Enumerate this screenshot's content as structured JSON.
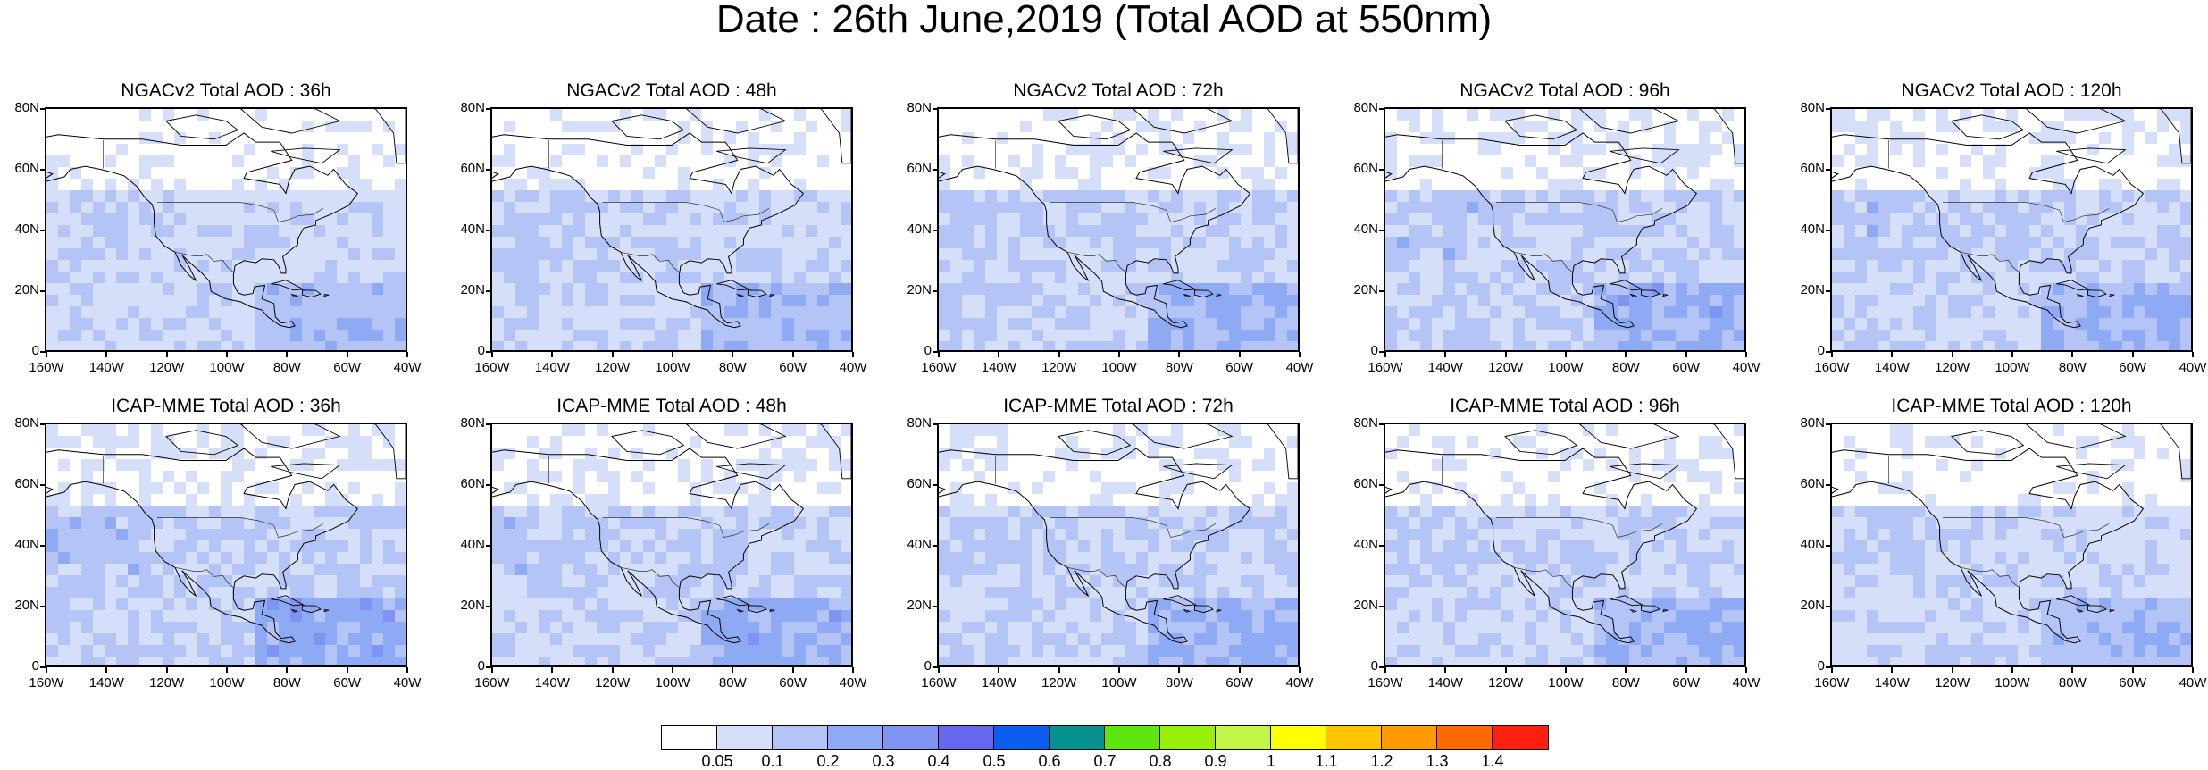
{
  "title": "Date : 26th June,2019 (Total AOD at 550nm)",
  "panels": [
    {
      "title": "NGACv2 Total AOD : 36h",
      "model": "NGACv2",
      "lead": "36h",
      "intensity": 0.45
    },
    {
      "title": "NGACv2 Total AOD : 48h",
      "model": "NGACv2",
      "lead": "48h",
      "intensity": 0.5
    },
    {
      "title": "NGACv2 Total AOD : 72h",
      "model": "NGACv2",
      "lead": "72h",
      "intensity": 0.6
    },
    {
      "title": "NGACv2 Total AOD : 96h",
      "model": "NGACv2",
      "lead": "96h",
      "intensity": 0.65
    },
    {
      "title": "NGACv2 Total AOD : 120h",
      "model": "NGACv2",
      "lead": "120h",
      "intensity": 0.6
    },
    {
      "title": "ICAP-MME Total AOD : 36h",
      "model": "ICAP-MME",
      "lead": "36h",
      "intensity": 0.7
    },
    {
      "title": "ICAP-MME Total AOD : 48h",
      "model": "ICAP-MME",
      "lead": "48h",
      "intensity": 0.65
    },
    {
      "title": "ICAP-MME Total AOD : 72h",
      "model": "ICAP-MME",
      "lead": "72h",
      "intensity": 0.6
    },
    {
      "title": "ICAP-MME Total AOD : 96h",
      "model": "ICAP-MME",
      "lead": "96h",
      "intensity": 0.55
    },
    {
      "title": "ICAP-MME Total AOD : 120h",
      "model": "ICAP-MME",
      "lead": "120h",
      "intensity": 0.5
    }
  ],
  "map_extent": {
    "lon_min": -160,
    "lon_max": -40,
    "lat_min": 0,
    "lat_max": 80
  },
  "lat_ticks": [
    "80N",
    "60N",
    "40N",
    "20N",
    "0"
  ],
  "lon_ticks": [
    "160W",
    "140W",
    "120W",
    "100W",
    "80W",
    "60W",
    "40W"
  ],
  "colorbar": {
    "colors": [
      "#ffffff",
      "#d6dffa",
      "#b4c4f7",
      "#8eaaf5",
      "#7e94f0",
      "#6666ee",
      "#0d5eef",
      "#079191",
      "#5ee610",
      "#96f00a",
      "#c2f548",
      "#ffff00",
      "#ffc300",
      "#ff9b00",
      "#ff6a00",
      "#ff2010"
    ],
    "labels": [
      "0.05",
      "0.1",
      "0.2",
      "0.3",
      "0.4",
      "0.5",
      "0.6",
      "0.7",
      "0.8",
      "0.9",
      "1",
      "1.1",
      "1.2",
      "1.3",
      "1.4"
    ]
  }
}
